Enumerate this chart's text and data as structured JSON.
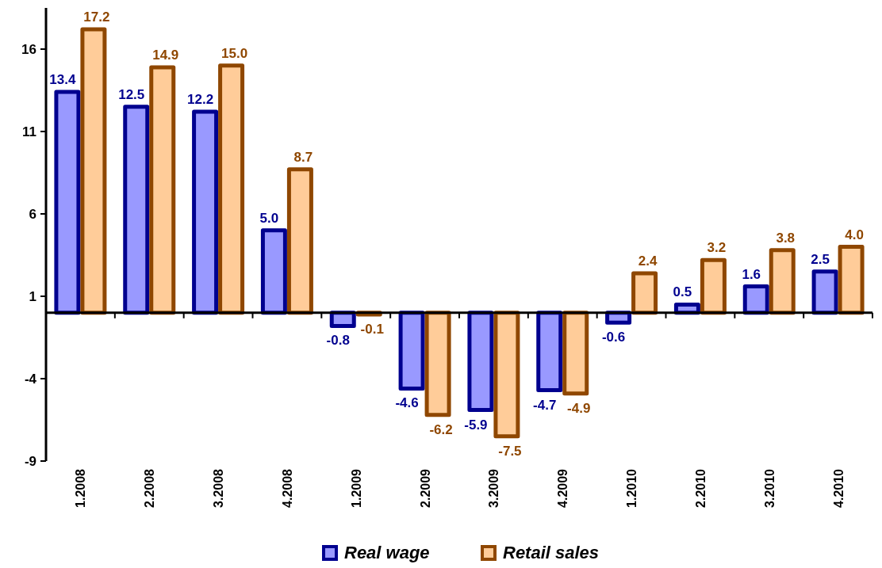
{
  "chart_data": {
    "type": "bar",
    "categories": [
      "1.2008",
      "2.2008",
      "3.2008",
      "4.2008",
      "1.2009",
      "2.2009",
      "3.2009",
      "4.2009",
      "1.2010",
      "2.2010",
      "3.2010",
      "4.2010"
    ],
    "series": [
      {
        "name": "Real wage",
        "color": "#9999ff",
        "values": [
          13.4,
          12.5,
          12.2,
          5.0,
          -0.8,
          -4.6,
          -5.9,
          -4.7,
          -0.6,
          0.5,
          1.6,
          2.5
        ],
        "value_labels": [
          "13.4",
          "12.5",
          "12.2",
          "5.0",
          "-0.8",
          "-4.6",
          "-5.9",
          "-4.7",
          "-0.6",
          "0.5",
          "1.6",
          "2.5"
        ]
      },
      {
        "name": "Retail sales",
        "color": "#ffcc99",
        "values": [
          17.2,
          14.9,
          15.0,
          8.7,
          -0.1,
          -6.2,
          -7.5,
          -4.9,
          2.4,
          3.2,
          3.8,
          4.0
        ],
        "value_labels": [
          "17.2",
          "14.9",
          "15.0",
          "8.7",
          "-0.1",
          "-6.2",
          "-7.5",
          "-4.9",
          "2.4",
          "3.2",
          "3.8",
          "4.0"
        ]
      }
    ],
    "ylim": [
      -9,
      18.5
    ],
    "yticks": [
      -9,
      -4,
      1,
      6,
      11,
      16
    ],
    "legend": "bottom",
    "grid": false
  }
}
